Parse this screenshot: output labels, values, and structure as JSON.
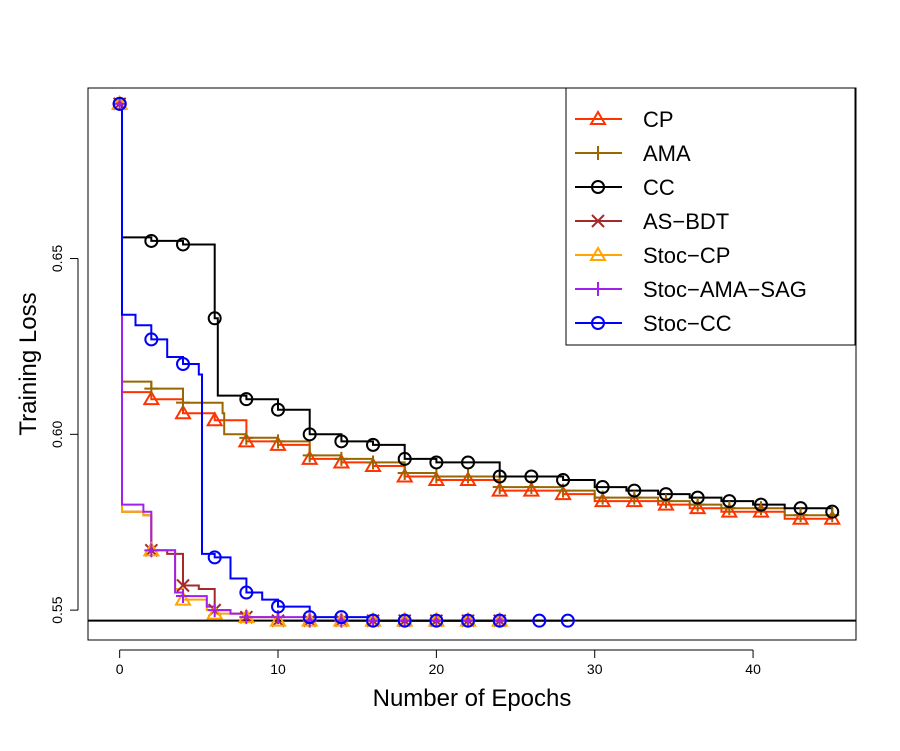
{
  "chart_data": {
    "type": "line",
    "xlabel": "Number of Epochs",
    "ylabel": "Training Loss",
    "xlim": [
      -2,
      46.5
    ],
    "ylim": [
      0.5415,
      0.6985
    ],
    "x_ticks": [
      0,
      10,
      20,
      30,
      40
    ],
    "y_ticks": [
      0.55,
      0.6,
      0.65
    ],
    "y_tick_labels": [
      "0.55",
      "0.60",
      "0.65"
    ],
    "legend_position": "top-right",
    "reference_line": {
      "y": 0.547,
      "color": "#000000"
    },
    "series": [
      {
        "name": "CP",
        "color": "#ff3300",
        "marker": "triangle",
        "x": [
          0,
          0.15,
          2,
          4,
          6,
          8,
          10,
          12,
          14,
          16,
          18,
          20,
          22,
          24,
          26,
          28,
          30,
          32,
          34,
          36,
          38,
          40,
          42,
          45
        ],
        "y": [
          0.694,
          0.612,
          0.61,
          0.606,
          0.604,
          0.598,
          0.597,
          0.593,
          0.592,
          0.591,
          0.588,
          0.587,
          0.587,
          0.584,
          0.584,
          0.583,
          0.581,
          0.581,
          0.58,
          0.579,
          0.578,
          0.578,
          0.576,
          0.576
        ],
        "marker_x": [
          2,
          4,
          6,
          8,
          10,
          12,
          14,
          16,
          18,
          20,
          22,
          24,
          26,
          28,
          30.5,
          32.5,
          34.5,
          36.5,
          38.5,
          40.5,
          43,
          45
        ]
      },
      {
        "name": "AMA",
        "color": "#996600",
        "marker": "plus",
        "x": [
          0,
          0.15,
          2,
          4,
          6.5,
          6.6,
          8,
          10,
          12,
          14,
          16,
          18,
          20,
          22,
          24,
          26,
          28,
          30,
          32,
          34,
          36,
          38,
          40,
          42,
          45
        ],
        "y": [
          0.694,
          0.615,
          0.613,
          0.609,
          0.606,
          0.6,
          0.599,
          0.598,
          0.594,
          0.593,
          0.592,
          0.589,
          0.588,
          0.588,
          0.585,
          0.585,
          0.584,
          0.582,
          0.582,
          0.581,
          0.58,
          0.579,
          0.579,
          0.577,
          0.577
        ],
        "marker_x": [
          2,
          4,
          8,
          10,
          12,
          14,
          16,
          18,
          20,
          22,
          24,
          26,
          28,
          30.5,
          32.5,
          34.5,
          36.5,
          38.5,
          40.5,
          43,
          45
        ]
      },
      {
        "name": "CC",
        "color": "#000000",
        "marker": "circle",
        "x": [
          0,
          0.15,
          2,
          4,
          6,
          6.2,
          8,
          10,
          12,
          14,
          16,
          18,
          20,
          22,
          24,
          26,
          28,
          30,
          32,
          34,
          36,
          38,
          40,
          42,
          45
        ],
        "y": [
          0.694,
          0.656,
          0.655,
          0.654,
          0.633,
          0.611,
          0.61,
          0.607,
          0.6,
          0.598,
          0.597,
          0.593,
          0.592,
          0.592,
          0.588,
          0.588,
          0.587,
          0.585,
          0.584,
          0.583,
          0.582,
          0.581,
          0.58,
          0.579,
          0.578
        ],
        "marker_x": [
          0,
          2,
          4,
          6,
          8,
          10,
          12,
          14,
          16,
          18,
          20,
          22,
          24,
          26,
          28,
          30.5,
          32.5,
          34.5,
          36.5,
          38.5,
          40.5,
          43,
          45
        ]
      },
      {
        "name": "AS−BDT",
        "color": "#a52a2a",
        "marker": "cross",
        "x": [
          0,
          0.15,
          1.5,
          2,
          3,
          4,
          5,
          6,
          7,
          8,
          10,
          12,
          14,
          16,
          18,
          20,
          22,
          24
        ],
        "y": [
          0.694,
          0.578,
          0.577,
          0.567,
          0.566,
          0.557,
          0.556,
          0.55,
          0.549,
          0.548,
          0.547,
          0.547,
          0.547,
          0.547,
          0.547,
          0.547,
          0.547,
          0.547
        ],
        "marker_x": [
          0,
          2,
          4,
          6,
          8,
          10,
          12,
          14,
          16,
          18,
          20,
          22,
          24
        ]
      },
      {
        "name": "Stoc−CP",
        "color": "#ffa500",
        "marker": "triangle",
        "x": [
          0,
          0.15,
          1.5,
          2,
          3.5,
          4,
          5.5,
          6,
          7,
          8,
          10,
          12,
          14,
          16,
          18,
          20,
          22,
          24
        ],
        "y": [
          0.694,
          0.578,
          0.577,
          0.567,
          0.556,
          0.553,
          0.55,
          0.549,
          0.549,
          0.548,
          0.547,
          0.547,
          0.547,
          0.547,
          0.547,
          0.547,
          0.547,
          0.547
        ],
        "marker_x": [
          0,
          2,
          4,
          6,
          8,
          10,
          12,
          14,
          16,
          18,
          20,
          22,
          24
        ]
      },
      {
        "name": "Stoc−AMA−SAG",
        "color": "#a020f0",
        "marker": "plus",
        "x": [
          0,
          0.15,
          1.5,
          2,
          3.5,
          4,
          5.5,
          6,
          7,
          8,
          10,
          12,
          14,
          16,
          18,
          20,
          22,
          24
        ],
        "y": [
          0.694,
          0.58,
          0.578,
          0.567,
          0.555,
          0.554,
          0.551,
          0.55,
          0.549,
          0.548,
          0.548,
          0.547,
          0.547,
          0.547,
          0.547,
          0.547,
          0.547,
          0.547
        ],
        "marker_x": [
          0,
          2,
          4,
          6,
          8,
          10,
          12,
          14,
          16,
          18,
          20,
          22,
          24
        ]
      },
      {
        "name": "Stoc−CC",
        "color": "#0000ff",
        "marker": "circle",
        "x": [
          0,
          0.15,
          1,
          2,
          3,
          4,
          5,
          5.2,
          6,
          7,
          8,
          9,
          10,
          12,
          14,
          16,
          18,
          20,
          22,
          24,
          26,
          28.3
        ],
        "y": [
          0.694,
          0.634,
          0.631,
          0.627,
          0.622,
          0.62,
          0.617,
          0.566,
          0.565,
          0.559,
          0.555,
          0.553,
          0.551,
          0.548,
          0.548,
          0.547,
          0.547,
          0.547,
          0.547,
          0.547,
          0.547,
          0.547
        ],
        "marker_x": [
          0,
          2,
          4,
          6,
          8,
          10,
          12,
          14,
          16,
          18,
          20,
          22,
          24,
          26.5,
          28.3
        ]
      }
    ]
  }
}
